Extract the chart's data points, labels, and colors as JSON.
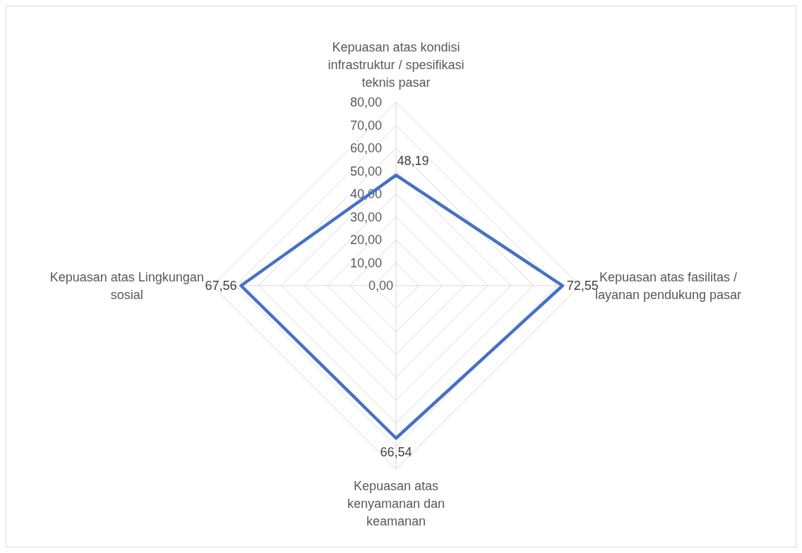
{
  "chart_data": {
    "type": "radar",
    "categories": [
      "Kepuasan atas kondisi infrastruktur / spesifikasi teknis pasar",
      "Kepuasan atas fasilitas / layanan pendukung pasar",
      "Kepuasan atas kenyamanan dan keamanan",
      "Kepuasan atas Lingkungan sosial"
    ],
    "series": [
      {
        "color": "#4472c4",
        "values": [
          48.19,
          72.55,
          66.54,
          67.56
        ],
        "value_labels": [
          "48,19",
          "72,55",
          "66,54",
          "67,56"
        ]
      }
    ],
    "ylim": [
      0,
      80
    ],
    "yticks": [
      {
        "value": 0,
        "label": "0,00"
      },
      {
        "value": 10,
        "label": "10,00"
      },
      {
        "value": 20,
        "label": "20,00"
      },
      {
        "value": 30,
        "label": "30,00"
      },
      {
        "value": 40,
        "label": "40,00"
      },
      {
        "value": 50,
        "label": "50,00"
      },
      {
        "value": 60,
        "label": "60,00"
      },
      {
        "value": 70,
        "label": "70,00"
      },
      {
        "value": 80,
        "label": "80,00"
      }
    ],
    "grid": true,
    "marker": "none",
    "line_style": "solid"
  }
}
